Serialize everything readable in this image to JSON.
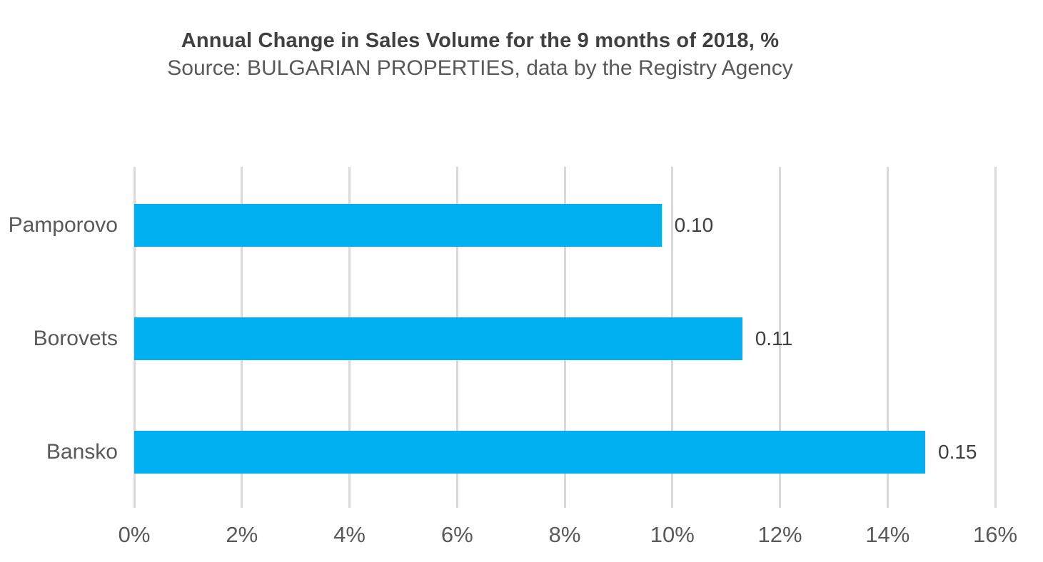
{
  "chart_data": {
    "type": "bar",
    "orientation": "horizontal",
    "title": "Annual Change in Sales Volume for the 9 months of 2018, %",
    "subtitle": "Source: BULGARIAN PROPERTIES, data by the Registry Agency",
    "categories": [
      "Pamporovo",
      "Borovets",
      "Bansko"
    ],
    "values_percent": [
      9.8,
      11.3,
      14.7
    ],
    "data_labels": [
      "0.10",
      "0.11",
      "0.15"
    ],
    "x_tick_values": [
      0,
      2,
      4,
      6,
      8,
      10,
      12,
      14,
      16
    ],
    "x_tick_labels": [
      "0%",
      "2%",
      "4%",
      "6%",
      "8%",
      "10%",
      "12%",
      "14%",
      "16%"
    ],
    "xlim": [
      0,
      16
    ],
    "grid": "vertical",
    "legend": "none",
    "colors": {
      "bar": "#00B0F0",
      "gridline": "#D9D9D9",
      "title_text": "#404040",
      "subtitle_text": "#595959",
      "category_text": "#595959",
      "data_label_text": "#404040",
      "tick_text": "#595959",
      "background": "#FFFFFF"
    }
  }
}
